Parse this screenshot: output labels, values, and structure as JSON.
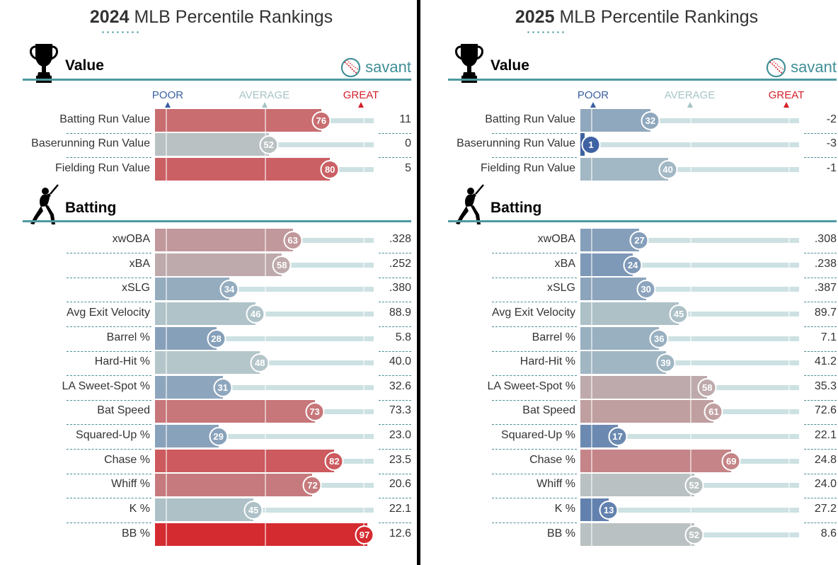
{
  "brand": "savant",
  "scale_labels": {
    "poor": "POOR",
    "average": "AVERAGE",
    "great": "GREAT"
  },
  "colors": {
    "poor": "#3a5fa0",
    "average": "#a7c4c5",
    "great": "#d3202a",
    "section_line": "#4e9aa0"
  },
  "icons": [
    "trophy-icon",
    "batter-icon",
    "baseball-icon"
  ],
  "chart_data": [
    {
      "type": "bar",
      "orientation": "horizontal",
      "year": "2024",
      "title_rest": "MLB Percentile Rankings",
      "xlim": [
        0,
        100
      ],
      "sections": [
        {
          "name": "Value",
          "icon": "trophy-icon",
          "metrics": [
            {
              "label": "Batting Run Value",
              "percentile": 76,
              "value": "11"
            },
            {
              "label": "Baserunning Run Value",
              "percentile": 52,
              "value": "0"
            },
            {
              "label": "Fielding Run Value",
              "percentile": 80,
              "value": "5"
            }
          ]
        },
        {
          "name": "Batting",
          "icon": "batter-icon",
          "metrics": [
            {
              "label": "xwOBA",
              "percentile": 63,
              "value": ".328"
            },
            {
              "label": "xBA",
              "percentile": 58,
              "value": ".252"
            },
            {
              "label": "xSLG",
              "percentile": 34,
              "value": ".380"
            },
            {
              "label": "Avg Exit Velocity",
              "percentile": 46,
              "value": "88.9"
            },
            {
              "label": "Barrel %",
              "percentile": 28,
              "value": "5.8"
            },
            {
              "label": "Hard-Hit %",
              "percentile": 48,
              "value": "40.0"
            },
            {
              "label": "LA Sweet-Spot %",
              "percentile": 31,
              "value": "32.6"
            },
            {
              "label": "Bat Speed",
              "percentile": 73,
              "value": "73.3"
            },
            {
              "label": "Squared-Up %",
              "percentile": 29,
              "value": "23.0"
            },
            {
              "label": "Chase %",
              "percentile": 82,
              "value": "23.5"
            },
            {
              "label": "Whiff %",
              "percentile": 72,
              "value": "20.6"
            },
            {
              "label": "K %",
              "percentile": 45,
              "value": "22.1"
            },
            {
              "label": "BB %",
              "percentile": 97,
              "value": "12.6"
            }
          ]
        }
      ]
    },
    {
      "type": "bar",
      "orientation": "horizontal",
      "year": "2025",
      "title_rest": "MLB Percentile Rankings",
      "xlim": [
        0,
        100
      ],
      "sections": [
        {
          "name": "Value",
          "icon": "trophy-icon",
          "metrics": [
            {
              "label": "Batting Run Value",
              "percentile": 32,
              "value": "-2"
            },
            {
              "label": "Baserunning Run Value",
              "percentile": 1,
              "value": "-3"
            },
            {
              "label": "Fielding Run Value",
              "percentile": 40,
              "value": "-1"
            }
          ]
        },
        {
          "name": "Batting",
          "icon": "batter-icon",
          "metrics": [
            {
              "label": "xwOBA",
              "percentile": 27,
              "value": ".308"
            },
            {
              "label": "xBA",
              "percentile": 24,
              "value": ".238"
            },
            {
              "label": "xSLG",
              "percentile": 30,
              "value": ".387"
            },
            {
              "label": "Avg Exit Velocity",
              "percentile": 45,
              "value": "89.7"
            },
            {
              "label": "Barrel %",
              "percentile": 36,
              "value": "7.1"
            },
            {
              "label": "Hard-Hit %",
              "percentile": 39,
              "value": "41.2"
            },
            {
              "label": "LA Sweet-Spot %",
              "percentile": 58,
              "value": "35.3"
            },
            {
              "label": "Bat Speed",
              "percentile": 61,
              "value": "72.6"
            },
            {
              "label": "Squared-Up %",
              "percentile": 17,
              "value": "22.1"
            },
            {
              "label": "Chase %",
              "percentile": 69,
              "value": "24.8"
            },
            {
              "label": "Whiff %",
              "percentile": 52,
              "value": "24.0"
            },
            {
              "label": "K %",
              "percentile": 13,
              "value": "27.2"
            },
            {
              "label": "BB %",
              "percentile": 52,
              "value": "8.6"
            }
          ]
        }
      ]
    }
  ]
}
